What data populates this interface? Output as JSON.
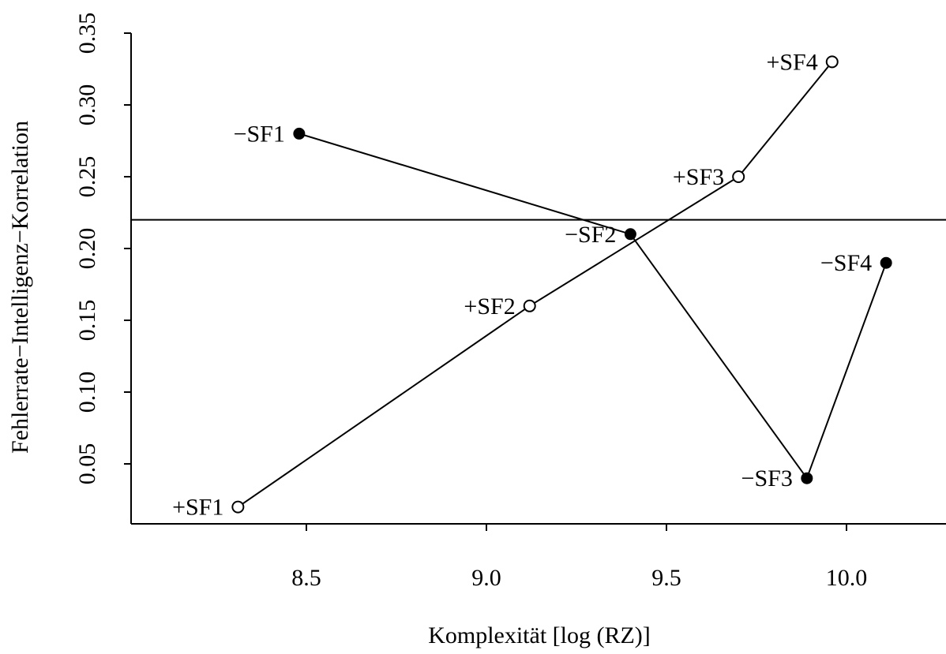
{
  "chart_data": {
    "type": "scatter",
    "title": "",
    "xlabel": "Komplexität [log (RZ)]",
    "ylabel": "Fehlerrate−Intelligenz−Korrelation",
    "xlim": [
      8.0,
      10.25
    ],
    "ylim": [
      0.0,
      0.35
    ],
    "x_ticks": [
      "8.5",
      "9.0",
      "9.5",
      "10.0"
    ],
    "y_ticks": [
      "0.05",
      "0.10",
      "0.15",
      "0.20",
      "0.25",
      "0.30",
      "0.35"
    ],
    "grid": false,
    "reference_line": {
      "orientation": "horizontal",
      "y": 0.22
    },
    "series": [
      {
        "marker": "open-circle",
        "points": [
          {
            "label": "+SF1",
            "x": 8.31,
            "y": 0.02
          },
          {
            "label": "+SF2",
            "x": 9.12,
            "y": 0.16
          },
          {
            "label": "+SF3",
            "x": 9.7,
            "y": 0.25
          },
          {
            "label": "+SF4",
            "x": 9.96,
            "y": 0.33
          }
        ]
      },
      {
        "marker": "filled-circle",
        "points": [
          {
            "label": "−SF1",
            "x": 8.48,
            "y": 0.28
          },
          {
            "label": "−SF2",
            "x": 9.4,
            "y": 0.21
          },
          {
            "label": "−SF3",
            "x": 9.89,
            "y": 0.04
          },
          {
            "label": "−SF4",
            "x": 10.11,
            "y": 0.19
          }
        ]
      }
    ]
  }
}
